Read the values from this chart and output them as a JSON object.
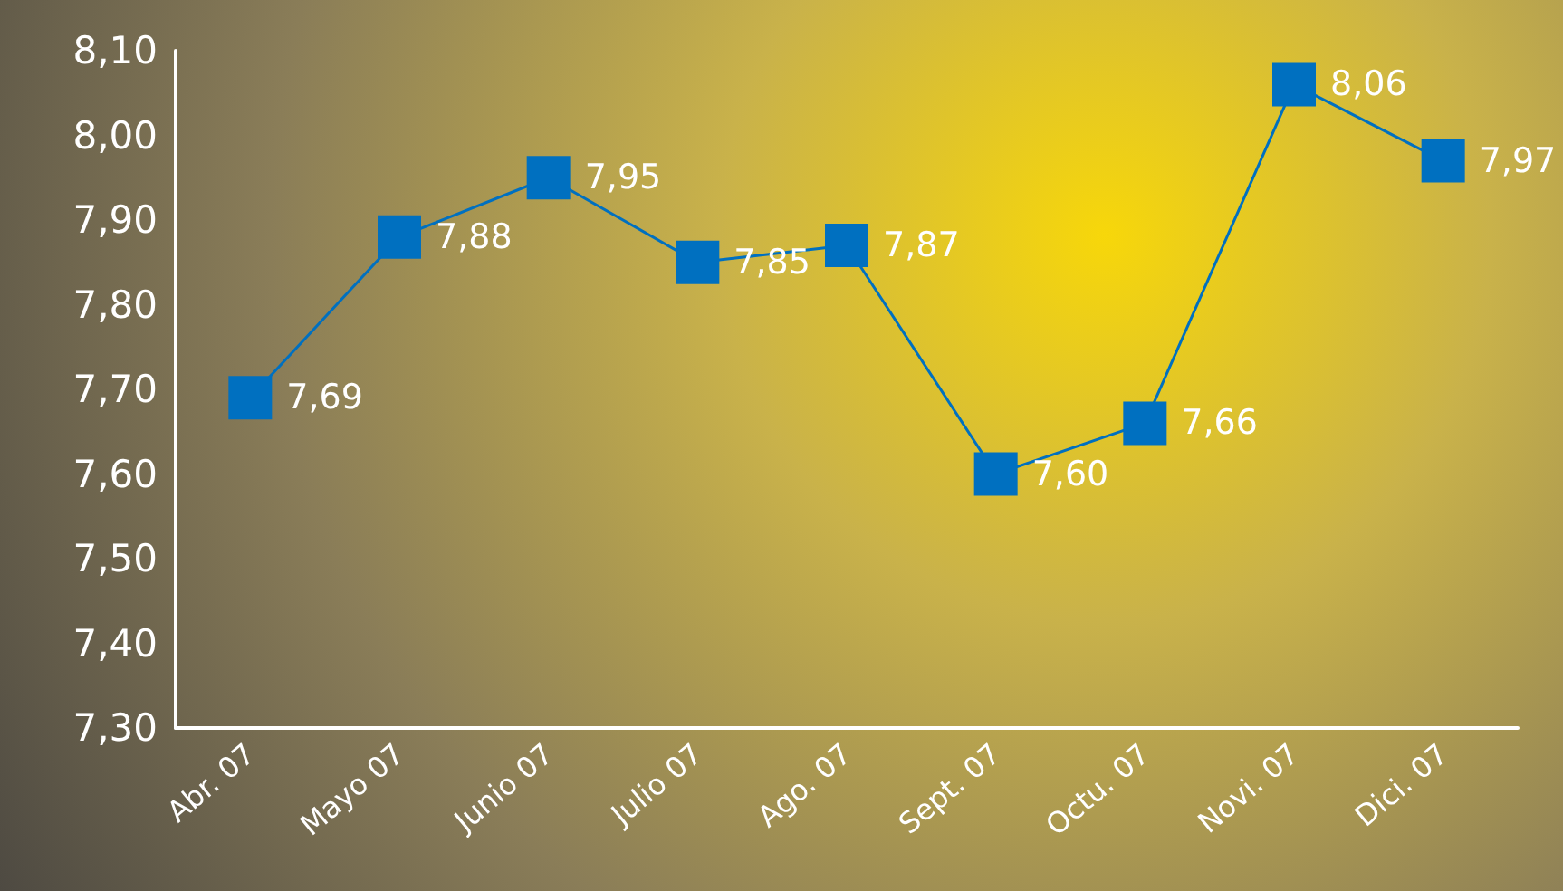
{
  "chart_data": {
    "type": "line",
    "categories": [
      "Abr. 07",
      "Mayo 07",
      "Junio 07",
      "Julio 07",
      "Ago. 07",
      "Sept. 07",
      "Octu. 07",
      "Novi. 07",
      "Dici. 07"
    ],
    "series": [
      {
        "color": "#0070c0",
        "values": [
          7.69,
          7.88,
          7.95,
          7.85,
          7.87,
          7.6,
          7.66,
          8.06,
          7.97
        ],
        "value_labels": [
          "7,69",
          "7,88",
          "7,95",
          "7,85",
          "7,87",
          "7,60",
          "7,66",
          "8,06",
          "7,97"
        ]
      }
    ],
    "ylim": [
      7.3,
      8.1
    ],
    "yticks": [
      {
        "value": 7.3,
        "label": "7,30"
      },
      {
        "value": 7.4,
        "label": "7,40"
      },
      {
        "value": 7.5,
        "label": "7,50"
      },
      {
        "value": 7.6,
        "label": "7,60"
      },
      {
        "value": 7.7,
        "label": "7,70"
      },
      {
        "value": 7.8,
        "label": "7,80"
      },
      {
        "value": 7.9,
        "label": "7,90"
      },
      {
        "value": 8.0,
        "label": "8,00"
      },
      {
        "value": 8.1,
        "label": "8,10"
      }
    ],
    "grid": false,
    "marker": "square",
    "line_style": "solid"
  }
}
